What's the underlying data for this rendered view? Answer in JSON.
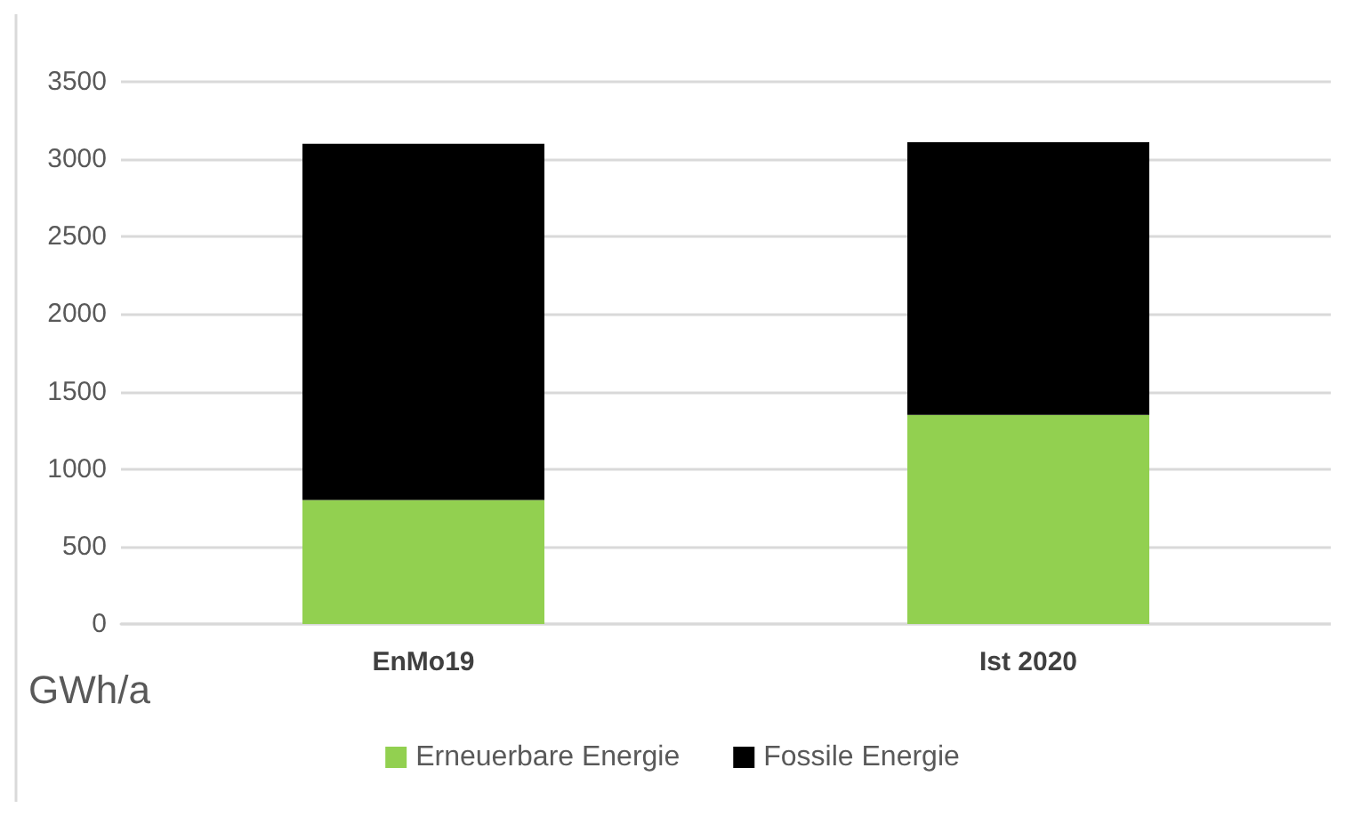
{
  "chart_data": {
    "type": "bar",
    "stacked": true,
    "ylabel": "GWh/a",
    "categories": [
      "EnMo19",
      "Ist 2020"
    ],
    "series": [
      {
        "name": "Erneuerbare Energie",
        "color": "#92d050",
        "values": [
          800,
          1350
        ]
      },
      {
        "name": "Fossile Energie",
        "color": "#000000",
        "values": [
          2300,
          1760
        ]
      }
    ],
    "ylim": [
      0,
      3500
    ],
    "yticks": [
      0,
      500,
      1000,
      1500,
      2000,
      2500,
      3000,
      3500
    ],
    "grid": "y",
    "legend": "bottom"
  }
}
